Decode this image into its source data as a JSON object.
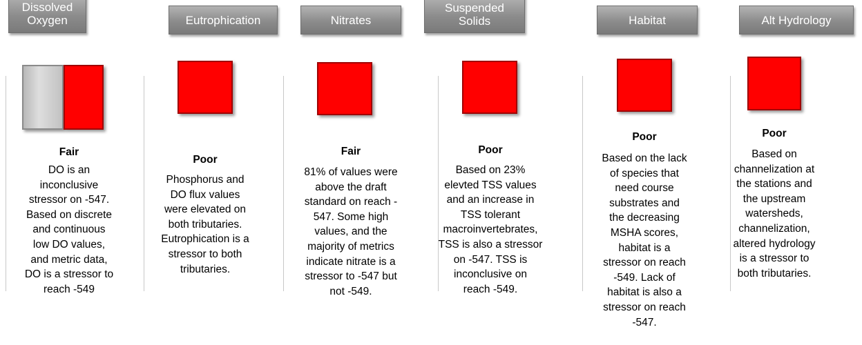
{
  "columns": [
    {
      "header": "Dissolved Oxygen",
      "rating": "Fair",
      "description": [
        "DO is an",
        "inconclusive",
        "stressor on -547.",
        "Based on discrete",
        "and continuous",
        "low DO values,",
        "and metric data,",
        "DO is a stressor to",
        "reach -549"
      ]
    },
    {
      "header": "Eutrophication",
      "rating": "Poor",
      "description": [
        "Phosphorus and",
        "DO flux values",
        "were elevated on",
        "both tributaries.",
        "Eutrophication is a",
        "stressor to both",
        "tributaries."
      ]
    },
    {
      "header": "Nitrates",
      "rating": "Fair",
      "description": [
        "81% of values were",
        "above the draft",
        "standard on reach -",
        "547. Some high",
        "values, and the",
        "majority of metrics",
        "indicate nitrate is a",
        "stressor to -547 but",
        "not -549."
      ]
    },
    {
      "header": "Suspended Solids",
      "rating": "Poor",
      "description": [
        "Based on 23%",
        "elevted TSS values",
        "and an increase in",
        "TSS tolerant",
        "macroinvertebrates,",
        "TSS is also a stressor",
        "on -547. TSS is",
        "inconclusive on",
        "reach -549."
      ]
    },
    {
      "header": "Habitat",
      "rating": "Poor",
      "description": [
        "Based on the lack",
        "of species that",
        "need course",
        "substrates and",
        "the decreasing",
        "MSHA scores,",
        "habitat is a",
        "stressor on reach",
        "-549. Lack of",
        "habitat is also a",
        "stressor on reach",
        "-547."
      ]
    },
    {
      "header": "Alt Hydrology",
      "rating": "Poor",
      "description": [
        "Based on",
        "channelization at",
        "the stations and",
        "the upstream",
        "watersheds,",
        "channelization,",
        "altered hydrology",
        "is a stressor to",
        "both tributaries."
      ]
    }
  ]
}
